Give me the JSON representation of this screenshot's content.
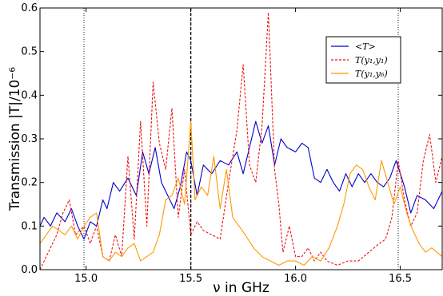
{
  "chart_data": {
    "type": "line",
    "xlabel": "ν in GHz",
    "ylabel": "Transmission |T|/10⁻⁶",
    "xlim": [
      14.78,
      16.7
    ],
    "ylim": [
      0.0,
      0.6
    ],
    "x_ticks": [
      15.0,
      15.5,
      16.0,
      16.5
    ],
    "x_tick_labels": [
      "15.0",
      "15.5",
      "16.0",
      "16.5"
    ],
    "y_ticks": [
      0.0,
      0.1,
      0.2,
      0.3,
      0.4,
      0.5,
      0.6
    ],
    "y_tick_labels": [
      "0.0",
      "0.1",
      "0.2",
      "0.3",
      "0.4",
      "0.5",
      "0.6"
    ],
    "grid": false,
    "legend_position": "top-right",
    "vertical_lines": [
      {
        "x": 14.99,
        "style": "dotted"
      },
      {
        "x": 15.5,
        "style": "dashed"
      },
      {
        "x": 16.49,
        "style": "dotted"
      }
    ],
    "series": [
      {
        "name": "<T>",
        "color": "#0000cc",
        "dash": "solid",
        "x": [
          14.78,
          14.8,
          14.83,
          14.86,
          14.9,
          14.93,
          14.96,
          14.99,
          15.02,
          15.05,
          15.08,
          15.1,
          15.13,
          15.16,
          15.2,
          15.24,
          15.27,
          15.3,
          15.33,
          15.36,
          15.39,
          15.42,
          15.45,
          15.48,
          15.5,
          15.53,
          15.56,
          15.6,
          15.64,
          15.68,
          15.72,
          15.75,
          15.78,
          15.81,
          15.84,
          15.87,
          15.9,
          15.93,
          15.96,
          16.0,
          16.03,
          16.06,
          16.09,
          16.12,
          16.15,
          16.18,
          16.21,
          16.24,
          16.27,
          16.3,
          16.33,
          16.36,
          16.39,
          16.42,
          16.45,
          16.48,
          16.5,
          16.52,
          16.55,
          16.58,
          16.62,
          16.66,
          16.7
        ],
        "y": [
          0.1,
          0.12,
          0.1,
          0.13,
          0.11,
          0.14,
          0.1,
          0.07,
          0.11,
          0.1,
          0.16,
          0.14,
          0.2,
          0.18,
          0.21,
          0.17,
          0.27,
          0.22,
          0.28,
          0.2,
          0.17,
          0.14,
          0.19,
          0.27,
          0.25,
          0.17,
          0.24,
          0.22,
          0.25,
          0.24,
          0.27,
          0.22,
          0.28,
          0.34,
          0.29,
          0.33,
          0.24,
          0.3,
          0.28,
          0.27,
          0.29,
          0.28,
          0.21,
          0.2,
          0.23,
          0.2,
          0.18,
          0.22,
          0.19,
          0.22,
          0.2,
          0.22,
          0.2,
          0.19,
          0.21,
          0.25,
          0.22,
          0.19,
          0.13,
          0.17,
          0.16,
          0.14,
          0.18
        ]
      },
      {
        "name": "T(y₁,y₁)",
        "color": "#ee1111",
        "dash": "dashed",
        "x": [
          14.78,
          14.8,
          14.83,
          14.86,
          14.89,
          14.92,
          14.95,
          14.99,
          15.02,
          15.05,
          15.08,
          15.11,
          15.14,
          15.17,
          15.2,
          15.23,
          15.26,
          15.29,
          15.32,
          15.35,
          15.38,
          15.41,
          15.44,
          15.47,
          15.5,
          15.53,
          15.56,
          15.6,
          15.64,
          15.68,
          15.72,
          15.75,
          15.78,
          15.81,
          15.84,
          15.87,
          15.9,
          15.92,
          15.94,
          15.97,
          16.0,
          16.03,
          16.06,
          16.09,
          16.12,
          16.15,
          16.2,
          16.25,
          16.3,
          16.35,
          16.4,
          16.43,
          16.46,
          16.49,
          16.52,
          16.55,
          16.58,
          16.61,
          16.64,
          16.67,
          16.7
        ],
        "y": [
          0.0,
          0.02,
          0.05,
          0.08,
          0.13,
          0.16,
          0.08,
          0.1,
          0.06,
          0.1,
          0.03,
          0.02,
          0.08,
          0.03,
          0.26,
          0.07,
          0.34,
          0.1,
          0.43,
          0.29,
          0.23,
          0.37,
          0.12,
          0.23,
          0.08,
          0.11,
          0.09,
          0.08,
          0.07,
          0.2,
          0.32,
          0.47,
          0.24,
          0.2,
          0.33,
          0.59,
          0.23,
          0.15,
          0.04,
          0.1,
          0.03,
          0.03,
          0.05,
          0.02,
          0.04,
          0.02,
          0.01,
          0.02,
          0.02,
          0.04,
          0.06,
          0.07,
          0.12,
          0.25,
          0.16,
          0.1,
          0.13,
          0.25,
          0.31,
          0.2,
          0.26
        ]
      },
      {
        "name": "T(y₁,y₆)",
        "color": "#ff9900",
        "dash": "solid",
        "x": [
          14.78,
          14.81,
          14.84,
          14.87,
          14.9,
          14.93,
          14.96,
          14.99,
          15.02,
          15.05,
          15.08,
          15.11,
          15.14,
          15.17,
          15.2,
          15.23,
          15.26,
          15.29,
          15.32,
          15.35,
          15.38,
          15.41,
          15.44,
          15.47,
          15.5,
          15.52,
          15.55,
          15.58,
          15.61,
          15.64,
          15.67,
          15.7,
          15.73,
          15.76,
          15.8,
          15.84,
          15.88,
          15.92,
          15.96,
          16.0,
          16.04,
          16.08,
          16.12,
          16.16,
          16.2,
          16.23,
          16.26,
          16.29,
          16.32,
          16.35,
          16.38,
          16.41,
          16.44,
          16.47,
          16.5,
          16.53,
          16.56,
          16.59,
          16.62,
          16.65,
          16.7
        ],
        "y": [
          0.06,
          0.08,
          0.1,
          0.09,
          0.08,
          0.1,
          0.07,
          0.1,
          0.12,
          0.13,
          0.03,
          0.02,
          0.04,
          0.03,
          0.05,
          0.06,
          0.02,
          0.03,
          0.04,
          0.08,
          0.16,
          0.17,
          0.21,
          0.15,
          0.34,
          0.16,
          0.19,
          0.17,
          0.26,
          0.14,
          0.23,
          0.12,
          0.1,
          0.08,
          0.05,
          0.03,
          0.02,
          0.01,
          0.02,
          0.02,
          0.01,
          0.03,
          0.02,
          0.05,
          0.1,
          0.15,
          0.22,
          0.24,
          0.23,
          0.19,
          0.16,
          0.25,
          0.2,
          0.15,
          0.19,
          0.13,
          0.09,
          0.06,
          0.04,
          0.05,
          0.03
        ]
      }
    ]
  }
}
